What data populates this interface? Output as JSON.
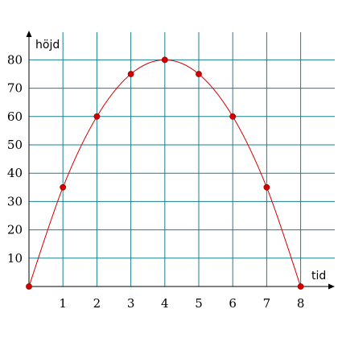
{
  "chart_data": {
    "type": "line",
    "xlabel": "tid",
    "ylabel": "höjd",
    "x": [
      0,
      1,
      2,
      3,
      4,
      5,
      6,
      7,
      8
    ],
    "y": [
      0,
      35,
      60,
      75,
      80,
      75,
      60,
      35,
      0
    ],
    "x_ticks": [
      1,
      2,
      3,
      4,
      5,
      6,
      7,
      8
    ],
    "y_ticks": [
      10,
      20,
      30,
      40,
      50,
      60,
      70,
      80
    ],
    "xlim": [
      0,
      9
    ],
    "ylim": [
      0,
      90
    ],
    "grid": true,
    "smooth": true,
    "markers": true,
    "colors": {
      "curve": "#d40000",
      "grid": "#1a7f8f",
      "axis": "#000000"
    }
  }
}
